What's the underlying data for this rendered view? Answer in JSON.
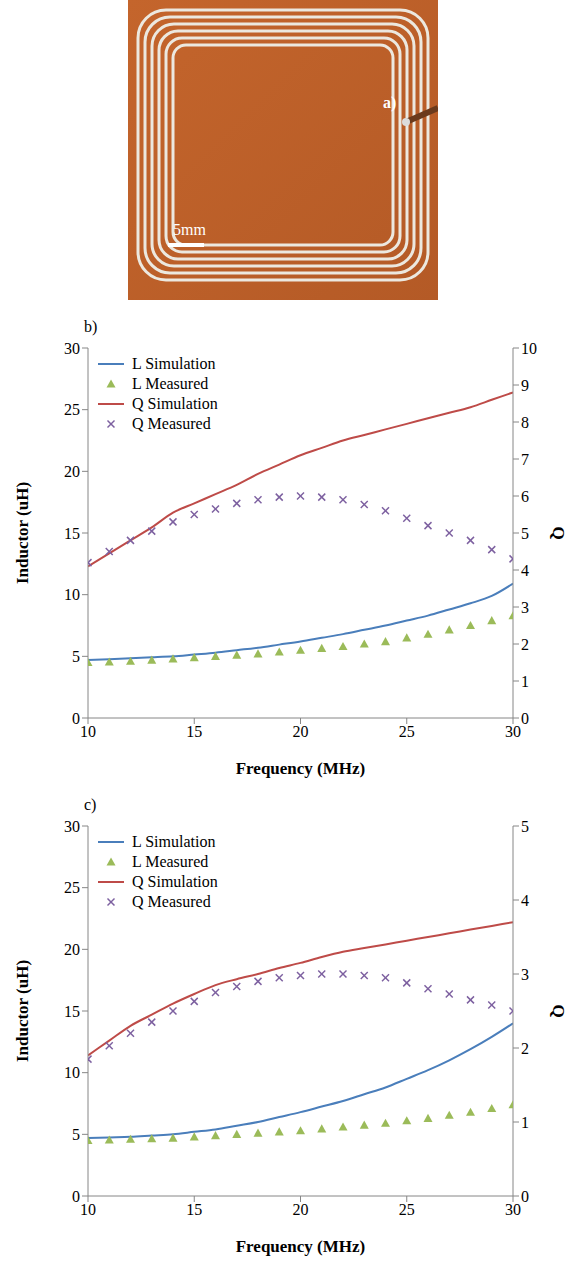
{
  "photo": {
    "label": "a)",
    "scale_bar": "5mm"
  },
  "chart_data": [
    {
      "type": "line",
      "title": "b)",
      "xlabel": "Frequency (MHz)",
      "ylabel": "Inductor (uH)",
      "y2label": "Q",
      "x": [
        10,
        11,
        12,
        13,
        14,
        15,
        16,
        17,
        18,
        19,
        20,
        21,
        22,
        23,
        24,
        25,
        26,
        27,
        28,
        29,
        30
      ],
      "xlim": [
        10,
        30
      ],
      "xticks": [
        10,
        15,
        20,
        25,
        30
      ],
      "ylim": [
        0,
        30
      ],
      "yticks": [
        0,
        5,
        10,
        15,
        20,
        25,
        30
      ],
      "y2lim": [
        0,
        10
      ],
      "y2ticks": [
        0,
        1,
        2,
        3,
        4,
        5,
        6,
        7,
        8,
        9,
        10
      ],
      "grid": false,
      "legend": "upper left",
      "series": [
        {
          "name": "L Simulation",
          "type": "line",
          "line_style": "solid",
          "color": "#4a7ebb",
          "values": [
            4.7,
            4.77,
            4.85,
            4.92,
            5.0,
            5.15,
            5.3,
            5.5,
            5.7,
            5.95,
            6.2,
            6.5,
            6.8,
            7.15,
            7.5,
            7.9,
            8.3,
            8.8,
            9.3,
            9.9,
            10.9
          ]
        },
        {
          "name": "L Measured",
          "type": "scatter",
          "marker": "triangle",
          "color": "#9bbb59",
          "values": [
            4.5,
            4.55,
            4.6,
            4.7,
            4.8,
            4.9,
            5.0,
            5.1,
            5.2,
            5.35,
            5.5,
            5.65,
            5.8,
            6.0,
            6.2,
            6.5,
            6.8,
            7.15,
            7.5,
            7.9,
            8.3
          ]
        },
        {
          "name": "Q Simulation",
          "type": "line",
          "line_style": "solid",
          "color": "#be4b48",
          "axis": "y2",
          "values": [
            4.1,
            4.45,
            4.8,
            5.15,
            5.55,
            5.8,
            6.05,
            6.3,
            6.6,
            6.85,
            7.1,
            7.3,
            7.5,
            7.65,
            7.8,
            7.95,
            8.1,
            8.25,
            8.4,
            8.6,
            8.8
          ]
        },
        {
          "name": "Q Measured",
          "type": "scatter",
          "marker": "x",
          "color": "#7d60a0",
          "axis": "y2",
          "values": [
            4.2,
            4.5,
            4.8,
            5.05,
            5.3,
            5.5,
            5.65,
            5.8,
            5.9,
            5.97,
            6.0,
            5.97,
            5.9,
            5.77,
            5.6,
            5.4,
            5.2,
            5.0,
            4.8,
            4.55,
            4.3
          ]
        }
      ]
    },
    {
      "type": "line",
      "title": "c)",
      "xlabel": "Frequency (MHz)",
      "ylabel": "Inductor (uH)",
      "y2label": "Q",
      "x": [
        10,
        11,
        12,
        13,
        14,
        15,
        16,
        17,
        18,
        19,
        20,
        21,
        22,
        23,
        24,
        25,
        26,
        27,
        28,
        29,
        30
      ],
      "xlim": [
        10,
        30
      ],
      "xticks": [
        10,
        15,
        20,
        25,
        30
      ],
      "ylim": [
        0,
        30
      ],
      "yticks": [
        0,
        5,
        10,
        15,
        20,
        25,
        30
      ],
      "y2lim": [
        0,
        5
      ],
      "y2ticks": [
        0,
        1,
        2,
        3,
        4,
        5
      ],
      "grid": false,
      "legend": "upper left",
      "series": [
        {
          "name": "L Simulation",
          "type": "line",
          "line_style": "solid",
          "color": "#4a7ebb",
          "values": [
            4.7,
            4.75,
            4.8,
            4.9,
            5.0,
            5.2,
            5.4,
            5.7,
            6.0,
            6.4,
            6.8,
            7.25,
            7.7,
            8.25,
            8.8,
            9.5,
            10.2,
            11.0,
            11.9,
            12.9,
            14.0
          ]
        },
        {
          "name": "L Measured",
          "type": "scatter",
          "marker": "triangle",
          "color": "#9bbb59",
          "values": [
            4.5,
            4.55,
            4.6,
            4.65,
            4.7,
            4.8,
            4.9,
            5.0,
            5.1,
            5.2,
            5.3,
            5.45,
            5.6,
            5.75,
            5.9,
            6.1,
            6.3,
            6.55,
            6.8,
            7.1,
            7.4
          ]
        },
        {
          "name": "Q Simulation",
          "type": "line",
          "line_style": "solid",
          "color": "#be4b48",
          "axis": "y2",
          "values": [
            1.9,
            2.1,
            2.3,
            2.45,
            2.6,
            2.73,
            2.85,
            2.93,
            3.0,
            3.08,
            3.15,
            3.23,
            3.3,
            3.35,
            3.4,
            3.45,
            3.5,
            3.55,
            3.6,
            3.65,
            3.7
          ]
        },
        {
          "name": "Q Measured",
          "type": "scatter",
          "marker": "x",
          "color": "#7d60a0",
          "axis": "y2",
          "values": [
            1.85,
            2.03,
            2.2,
            2.35,
            2.5,
            2.63,
            2.75,
            2.83,
            2.9,
            2.95,
            2.98,
            3.0,
            3.0,
            2.98,
            2.95,
            2.88,
            2.8,
            2.73,
            2.65,
            2.58,
            2.5
          ]
        }
      ]
    }
  ]
}
